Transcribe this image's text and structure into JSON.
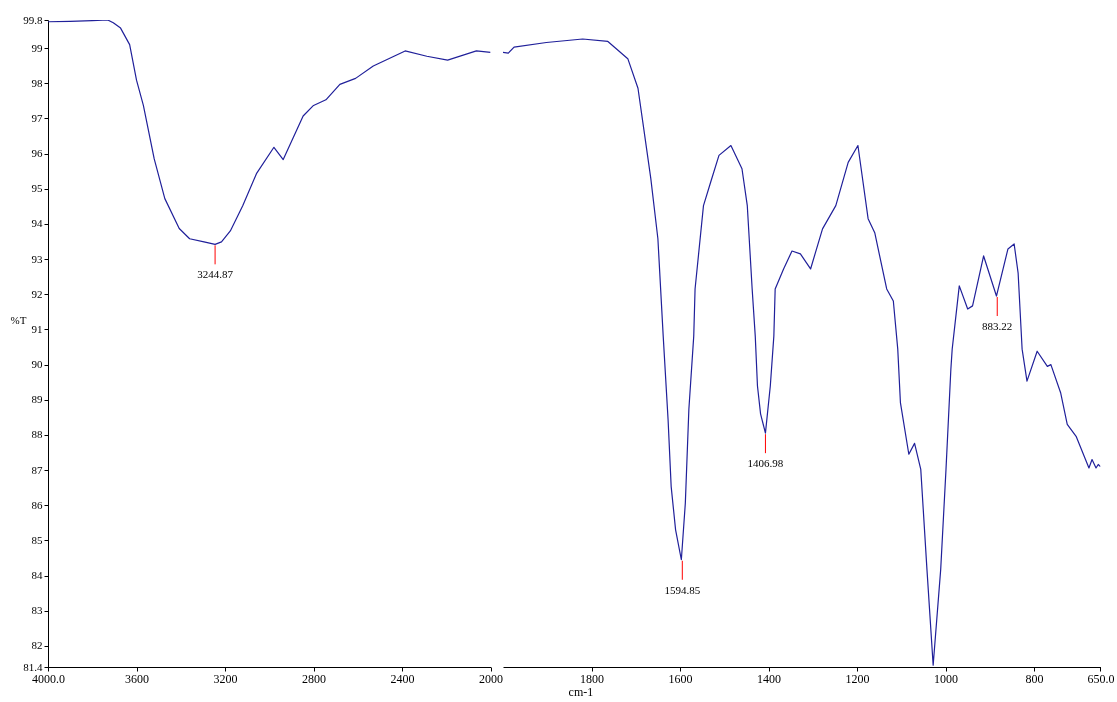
{
  "chart_data": [
    {
      "type": "line",
      "ylabel": "%T",
      "xlim": [
        4000,
        2000
      ],
      "ylim": [
        81.4,
        99.8
      ],
      "xticks": [
        {
          "value": 4000,
          "label": "4000.0"
        },
        3600,
        3200,
        2800,
        2400,
        2000
      ],
      "yticks": [
        81.4,
        82,
        83,
        84,
        85,
        86,
        87,
        88,
        89,
        90,
        91,
        92,
        93,
        94,
        95,
        96,
        97,
        98,
        99,
        99.8
      ],
      "x": [
        4000,
        3900,
        3800,
        3730,
        3705,
        3672,
        3631,
        3600,
        3569,
        3520,
        3472,
        3407,
        3360,
        3295,
        3244.87,
        3216,
        3176,
        3120,
        3058,
        2979,
        2937,
        2847,
        2800,
        2744,
        2681,
        2610,
        2530,
        2386,
        2288,
        2194,
        2064,
        2000
      ],
      "series": [
        {
          "color": "#20209a",
          "values": [
            99.75,
            99.76,
            99.78,
            99.8,
            99.72,
            99.57,
            99.1,
            98.09,
            97.37,
            95.85,
            94.72,
            93.87,
            93.58,
            93.49,
            93.42,
            93.49,
            93.8,
            94.52,
            95.43,
            96.18,
            95.83,
            97.07,
            97.37,
            97.53,
            97.97,
            98.14,
            98.49,
            98.92,
            98.77,
            98.66,
            98.92,
            98.88
          ]
        }
      ],
      "annotations": [
        {
          "text": "3244.87",
          "x": 3244.87,
          "y": 93.42
        }
      ]
    },
    {
      "type": "line",
      "xlabel": "cm-1",
      "tick_labels": "x",
      "xlim": [
        2000,
        650
      ],
      "ylim": [
        81.4,
        99.8
      ],
      "xticks": [
        1800,
        1600,
        1400,
        1200,
        1000,
        800,
        {
          "value": 650,
          "label": "650.0"
        }
      ],
      "x": [
        2000,
        1988,
        1975,
        1902,
        1820,
        1763,
        1718,
        1695,
        1684,
        1666,
        1650,
        1638,
        1627,
        1620,
        1610,
        1597,
        1588,
        1580,
        1569,
        1566,
        1547,
        1531,
        1512,
        1485,
        1460,
        1448,
        1437,
        1430,
        1425,
        1418,
        1407,
        1396,
        1388,
        1385,
        1366,
        1347,
        1328,
        1305,
        1278,
        1248,
        1220,
        1198,
        1175,
        1160,
        1133,
        1118,
        1108,
        1102,
        1083,
        1070,
        1056,
        1042,
        1028,
        1011,
        999,
        988,
        985,
        969,
        950,
        939,
        914,
        885,
        859,
        845,
        836,
        827,
        816,
        793,
        770,
        762,
        740,
        725,
        705,
        676,
        669,
        660,
        655,
        650
      ],
      "series": [
        {
          "color": "#20209a",
          "values": [
            98.88,
            98.86,
            99.03,
            99.16,
            99.26,
            99.19,
            98.7,
            97.86,
            96.89,
            95.29,
            93.58,
            90.81,
            88.44,
            86.53,
            85.3,
            84.45,
            86.06,
            88.73,
            90.81,
            92.15,
            94.52,
            95.18,
            95.95,
            96.23,
            95.57,
            94.52,
            92.15,
            90.81,
            89.39,
            88.6,
            88.05,
            89.39,
            90.81,
            92.15,
            92.72,
            93.23,
            93.15,
            92.72,
            93.86,
            94.52,
            95.75,
            96.23,
            94.15,
            93.75,
            92.15,
            91.81,
            90.44,
            88.92,
            87.45,
            87.76,
            87.02,
            84.17,
            81.45,
            84.17,
            87.02,
            89.87,
            90.44,
            92.24,
            91.58,
            91.67,
            93.09,
            91.95,
            93.29,
            93.43,
            92.6,
            90.44,
            89.53,
            90.38,
            89.95,
            90.0,
            89.2,
            88.3,
            87.96,
            87.06,
            87.3,
            87.06,
            87.16,
            87.1
          ]
        }
      ],
      "annotations": [
        {
          "text": "1594.85",
          "x": 1594.85,
          "y": 84.45
        },
        {
          "text": "1406.98",
          "x": 1406.98,
          "y": 88.05
        },
        {
          "text": "883.22",
          "x": 883.22,
          "y": 91.95
        }
      ]
    }
  ]
}
